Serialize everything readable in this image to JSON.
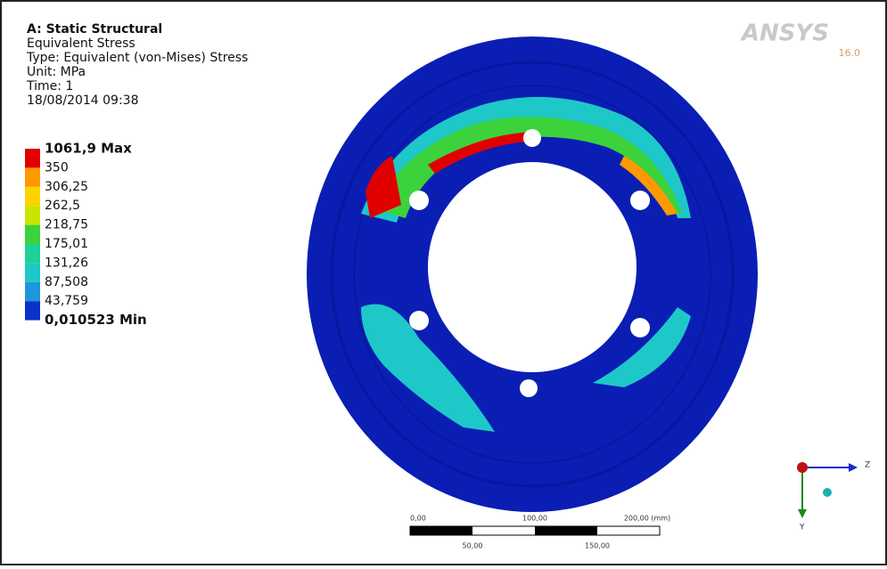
{
  "header": {
    "lines": [
      "A: Static Structural",
      "Equivalent Stress",
      "Type: Equivalent (von-Mises) Stress",
      "Unit: MPa",
      "Time: 1",
      "18/08/2014 09:38"
    ]
  },
  "legend": {
    "labels": [
      "1061,9 Max",
      "350",
      "306,25",
      "262,5",
      "218,75",
      "175,01",
      "131,26",
      "87,508",
      "43,759",
      "0,010523 Min"
    ],
    "band_colors": [
      "#e00000",
      "#ff9900",
      "#ffd200",
      "#c8e600",
      "#3cd23c",
      "#1ed296",
      "#1ec8c8",
      "#1e96dc",
      "#0a32c8"
    ]
  },
  "logo": {
    "brand": "ANSYS",
    "version": "16.0"
  },
  "scale_bar": {
    "top_labels": [
      "0,00",
      "100,00",
      "200,00 (mm)"
    ],
    "bottom_labels": [
      "50,00",
      "150,00"
    ]
  },
  "triad": {
    "z": "Z",
    "y": "Y"
  }
}
